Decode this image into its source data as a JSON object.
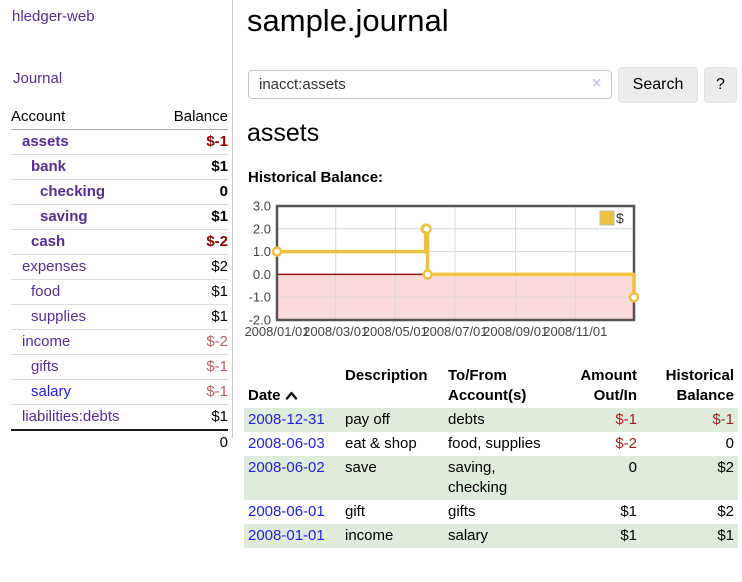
{
  "app": {
    "title": "hledger-web"
  },
  "sidebar": {
    "journal_link": "Journal",
    "accounts": {
      "headers": {
        "account": "Account",
        "balance": "Balance"
      },
      "rows": [
        {
          "account": "assets",
          "balance": "$-1"
        },
        {
          "account": "bank",
          "balance": "$1"
        },
        {
          "account": "checking",
          "balance": "0"
        },
        {
          "account": "saving",
          "balance": "$1"
        },
        {
          "account": "cash",
          "balance": "$-2"
        },
        {
          "account": "expenses",
          "balance": "$2"
        },
        {
          "account": "food",
          "balance": "$1"
        },
        {
          "account": "supplies",
          "balance": "$1"
        },
        {
          "account": "income",
          "balance": "$-2"
        },
        {
          "account": "gifts",
          "balance": "$-1"
        },
        {
          "account": "salary",
          "balance": "$-1"
        },
        {
          "account": "liabilities:debts",
          "balance": "$1"
        }
      ],
      "total": "0"
    }
  },
  "main": {
    "title": "sample.journal",
    "search": {
      "value": "inacct:assets",
      "clear_label": "×",
      "button": "Search",
      "help_button": "?"
    },
    "account_heading": "assets",
    "section_label": "Historical Balance:"
  },
  "chart_data": {
    "type": "line",
    "step": true,
    "title": "Historical Balance",
    "legend_position": "top-right",
    "x_range": [
      "2008-01-01",
      "2008-12-31"
    ],
    "ylim": [
      -2,
      3
    ],
    "y_ticks": [
      3,
      2,
      1,
      0,
      -1,
      -2
    ],
    "x_ticks": [
      {
        "date": "2008-01-01",
        "label": "2008/01/01"
      },
      {
        "date": "2008-03-01",
        "label": "2008/03/01"
      },
      {
        "date": "2008-05-01",
        "label": "2008/05/01"
      },
      {
        "date": "2008-07-01",
        "label": "2008/07/01"
      },
      {
        "date": "2008-09-01",
        "label": "2008/09/01"
      },
      {
        "date": "2008-11-01",
        "label": "2008/11/01"
      }
    ],
    "series": [
      {
        "name": "$",
        "color": "#edc240",
        "points": [
          [
            "2008-01-01",
            1
          ],
          [
            "2008-06-01",
            2
          ],
          [
            "2008-06-02",
            2
          ],
          [
            "2008-06-03",
            0
          ],
          [
            "2008-12-31",
            -1
          ]
        ]
      }
    ],
    "negative_region_fill": "#fadada",
    "zero_line_color": "#8b1a1a",
    "grid_color": "#d9d9d9",
    "border_color": "#545454"
  },
  "register": {
    "headers": {
      "date": "Date",
      "description": "Description",
      "tofrom": "To/From\nAccount(s)",
      "amount": "Amount\nOut/In",
      "balance": "Historical\nBalance"
    },
    "rows": [
      {
        "date": "2008-12-31",
        "description": "pay off",
        "accounts": "debts",
        "amount": "$-1",
        "balance": "$-1"
      },
      {
        "date": "2008-06-03",
        "description": "eat & shop",
        "accounts": "food, supplies",
        "amount": "$-2",
        "balance": "0"
      },
      {
        "date": "2008-06-02",
        "description": "save",
        "accounts": "saving,\nchecking",
        "amount": "0",
        "balance": "$2"
      },
      {
        "date": "2008-06-01",
        "description": "gift",
        "accounts": "gifts",
        "amount": "$1",
        "balance": "$2"
      },
      {
        "date": "2008-01-01",
        "description": "income",
        "accounts": "salary",
        "amount": "$1",
        "balance": "$1"
      }
    ]
  }
}
